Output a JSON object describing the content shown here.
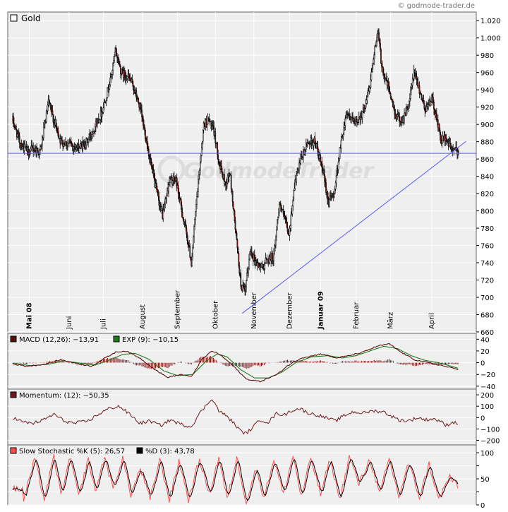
{
  "watermark_credit": "© godmode-trader.de",
  "logo_text": "GodmodeTrader",
  "colors": {
    "panel_bg": "#efefef",
    "grid": "#ffffff",
    "candle_up": "#ffffff",
    "candle_down": "#8b1a1a",
    "wick": "#000000",
    "trend_line": "#5a5aff",
    "macd": "#5c0f0f",
    "macd_signal": "#1f7a1f",
    "histogram": "#7a1010",
    "momentum": "#6e1a1a",
    "stoch_k": "#ff5050",
    "stoch_d": "#000000"
  },
  "chart_data": [
    {
      "type": "candlestick",
      "title": "Gold",
      "legend_marker_color": "#ffffff",
      "ylim": [
        660,
        1030
      ],
      "yticks": [
        660,
        680,
        700,
        720,
        740,
        760,
        780,
        800,
        820,
        840,
        860,
        880,
        900,
        920,
        940,
        960,
        980,
        1000,
        1020
      ],
      "ytick_labels": [
        "660",
        "680",
        "700",
        "720",
        "740",
        "760",
        "780",
        "800",
        "820",
        "840",
        "860",
        "880",
        "900",
        "920",
        "940",
        "960",
        "980",
        "1.000",
        "1.020"
      ],
      "months": [
        {
          "label": "Mai 08",
          "index": 24,
          "bold": true
        },
        {
          "label": "Juni",
          "index": 82,
          "bold": false
        },
        {
          "label": "Juli",
          "index": 132,
          "bold": false
        },
        {
          "label": "August",
          "index": 189,
          "bold": false
        },
        {
          "label": "September",
          "index": 240,
          "bold": false
        },
        {
          "label": "Oktober",
          "index": 295,
          "bold": false
        },
        {
          "label": "November",
          "index": 351,
          "bold": false
        },
        {
          "label": "Dezember",
          "index": 403,
          "bold": false
        },
        {
          "label": "Januar 09",
          "index": 448,
          "bold": true
        },
        {
          "label": "Februar",
          "index": 500,
          "bold": false
        },
        {
          "label": "März",
          "index": 550,
          "bold": false
        },
        {
          "label": "April",
          "index": 610,
          "bold": false
        }
      ],
      "x_count": 650,
      "price_anchors": [
        [
          0,
          905
        ],
        [
          10,
          880
        ],
        [
          22,
          868
        ],
        [
          30,
          872
        ],
        [
          40,
          868
        ],
        [
          52,
          925
        ],
        [
          60,
          905
        ],
        [
          70,
          880
        ],
        [
          82,
          878
        ],
        [
          95,
          872
        ],
        [
          108,
          880
        ],
        [
          118,
          895
        ],
        [
          130,
          915
        ],
        [
          142,
          950
        ],
        [
          150,
          985
        ],
        [
          158,
          960
        ],
        [
          168,
          955
        ],
        [
          175,
          945
        ],
        [
          185,
          920
        ],
        [
          195,
          880
        ],
        [
          202,
          850
        ],
        [
          210,
          820
        ],
        [
          218,
          795
        ],
        [
          228,
          835
        ],
        [
          238,
          835
        ],
        [
          246,
          800
        ],
        [
          255,
          765
        ],
        [
          260,
          740
        ],
        [
          268,
          815
        ],
        [
          278,
          900
        ],
        [
          286,
          905
        ],
        [
          294,
          888
        ],
        [
          302,
          850
        ],
        [
          310,
          830
        ],
        [
          316,
          845
        ],
        [
          324,
          780
        ],
        [
          332,
          715
        ],
        [
          338,
          705
        ],
        [
          346,
          755
        ],
        [
          354,
          740
        ],
        [
          362,
          735
        ],
        [
          372,
          745
        ],
        [
          380,
          748
        ],
        [
          388,
          810
        ],
        [
          396,
          790
        ],
        [
          402,
          770
        ],
        [
          410,
          830
        ],
        [
          420,
          860
        ],
        [
          430,
          880
        ],
        [
          440,
          880
        ],
        [
          450,
          850
        ],
        [
          460,
          810
        ],
        [
          468,
          822
        ],
        [
          476,
          870
        ],
        [
          486,
          915
        ],
        [
          498,
          900
        ],
        [
          510,
          915
        ],
        [
          520,
          945
        ],
        [
          526,
          985
        ],
        [
          532,
          1005
        ],
        [
          536,
          975
        ],
        [
          540,
          958
        ],
        [
          548,
          940
        ],
        [
          556,
          912
        ],
        [
          566,
          905
        ],
        [
          576,
          920
        ],
        [
          584,
          960
        ],
        [
          592,
          940
        ],
        [
          600,
          918
        ],
        [
          610,
          930
        ],
        [
          616,
          910
        ],
        [
          624,
          880
        ],
        [
          630,
          885
        ],
        [
          636,
          875
        ],
        [
          642,
          870
        ],
        [
          650,
          868
        ]
      ],
      "candles": [],
      "trend_lines": [
        {
          "kind": "horizontal",
          "y": 866.5
        },
        {
          "kind": "segment",
          "x0": 334,
          "y0": 681.5,
          "x1": 660,
          "y1": 880.5
        }
      ]
    },
    {
      "type": "line",
      "series": [
        {
          "name": "MACD (12,26)",
          "value_label": "MACD (12,26): −13,91"
        },
        {
          "name": "EXP (9)",
          "value_label": "EXP (9): −10,15"
        },
        {
          "name": "histogram"
        }
      ],
      "ylim": [
        -45,
        50
      ],
      "yticks": [
        -40,
        -20,
        0,
        20,
        40
      ],
      "ytick_labels": [
        "−40",
        "−20",
        "0",
        "20",
        "40"
      ],
      "macd_anchors": [
        [
          0,
          -2
        ],
        [
          20,
          -6
        ],
        [
          45,
          -3
        ],
        [
          70,
          5
        ],
        [
          95,
          -2
        ],
        [
          115,
          -6
        ],
        [
          130,
          5
        ],
        [
          150,
          18
        ],
        [
          165,
          20
        ],
        [
          185,
          8
        ],
        [
          205,
          -10
        ],
        [
          225,
          -25
        ],
        [
          245,
          -20
        ],
        [
          260,
          -24
        ],
        [
          275,
          5
        ],
        [
          290,
          20
        ],
        [
          300,
          15
        ],
        [
          318,
          -2
        ],
        [
          340,
          -28
        ],
        [
          360,
          -32
        ],
        [
          385,
          -20
        ],
        [
          400,
          -5
        ],
        [
          420,
          8
        ],
        [
          450,
          15
        ],
        [
          470,
          8
        ],
        [
          490,
          12
        ],
        [
          510,
          18
        ],
        [
          530,
          28
        ],
        [
          548,
          32
        ],
        [
          565,
          18
        ],
        [
          585,
          5
        ],
        [
          605,
          0
        ],
        [
          625,
          -5
        ],
        [
          650,
          -12
        ]
      ],
      "signal_anchors": [
        [
          0,
          -1
        ],
        [
          25,
          -5
        ],
        [
          50,
          -3
        ],
        [
          75,
          3
        ],
        [
          100,
          -1
        ],
        [
          120,
          -4
        ],
        [
          140,
          4
        ],
        [
          160,
          14
        ],
        [
          178,
          16
        ],
        [
          198,
          6
        ],
        [
          220,
          -14
        ],
        [
          240,
          -22
        ],
        [
          262,
          -20
        ],
        [
          282,
          3
        ],
        [
          298,
          15
        ],
        [
          312,
          10
        ],
        [
          332,
          -12
        ],
        [
          352,
          -26
        ],
        [
          372,
          -26
        ],
        [
          392,
          -16
        ],
        [
          412,
          0
        ],
        [
          435,
          10
        ],
        [
          460,
          12
        ],
        [
          480,
          8
        ],
        [
          500,
          12
        ],
        [
          520,
          20
        ],
        [
          540,
          28
        ],
        [
          560,
          24
        ],
        [
          580,
          12
        ],
        [
          600,
          4
        ],
        [
          620,
          0
        ],
        [
          650,
          -10
        ]
      ]
    },
    {
      "type": "line",
      "series": [
        {
          "name": "Momentum (12)",
          "value_label": "Momentum: (12): −50,35"
        }
      ],
      "ylim": [
        -240,
        250
      ],
      "yticks": [
        -200,
        -100,
        0,
        100,
        200
      ],
      "ytick_labels": [
        "−200",
        "−100",
        "0",
        "100",
        "200"
      ],
      "anchors": [
        [
          0,
          0
        ],
        [
          15,
          -40
        ],
        [
          30,
          -50
        ],
        [
          45,
          -20
        ],
        [
          60,
          30
        ],
        [
          75,
          -30
        ],
        [
          90,
          -50
        ],
        [
          110,
          -30
        ],
        [
          125,
          30
        ],
        [
          140,
          80
        ],
        [
          155,
          100
        ],
        [
          170,
          30
        ],
        [
          185,
          -50
        ],
        [
          200,
          -30
        ],
        [
          215,
          -70
        ],
        [
          230,
          -20
        ],
        [
          245,
          -60
        ],
        [
          260,
          -80
        ],
        [
          270,
          20
        ],
        [
          282,
          110
        ],
        [
          290,
          170
        ],
        [
          300,
          60
        ],
        [
          312,
          10
        ],
        [
          322,
          -50
        ],
        [
          332,
          -120
        ],
        [
          340,
          -140
        ],
        [
          350,
          -80
        ],
        [
          360,
          -20
        ],
        [
          372,
          -40
        ],
        [
          385,
          40
        ],
        [
          395,
          20
        ],
        [
          405,
          60
        ],
        [
          418,
          80
        ],
        [
          430,
          40
        ],
        [
          445,
          20
        ],
        [
          460,
          -10
        ],
        [
          470,
          -30
        ],
        [
          480,
          10
        ],
        [
          495,
          50
        ],
        [
          510,
          40
        ],
        [
          525,
          60
        ],
        [
          540,
          50
        ],
        [
          552,
          10
        ],
        [
          562,
          -20
        ],
        [
          575,
          -30
        ],
        [
          590,
          0
        ],
        [
          600,
          -20
        ],
        [
          612,
          -10
        ],
        [
          622,
          -30
        ],
        [
          630,
          -70
        ],
        [
          640,
          -40
        ],
        [
          650,
          -50
        ]
      ]
    },
    {
      "type": "line",
      "series": [
        {
          "name": "Slow Stochastic %K (5)",
          "value_label": "Slow Stochastic %K (5): 26,57"
        },
        {
          "name": "%D (3)",
          "value_label": "%D (3): 43,78"
        }
      ],
      "ylim": [
        0,
        115
      ],
      "yticks": [
        0,
        25,
        50,
        75,
        100
      ],
      "ytick_labels": [
        "0",
        "",
        "50",
        "",
        "100"
      ],
      "peaks": [
        [
          15,
          5
        ],
        [
          32,
          88
        ],
        [
          46,
          10
        ],
        [
          60,
          92
        ],
        [
          70,
          20
        ],
        [
          84,
          90
        ],
        [
          96,
          15
        ],
        [
          110,
          88
        ],
        [
          120,
          25
        ],
        [
          134,
          92
        ],
        [
          146,
          30
        ],
        [
          160,
          90
        ],
        [
          172,
          20
        ],
        [
          186,
          70
        ],
        [
          200,
          10
        ],
        [
          214,
          88
        ],
        [
          228,
          10
        ],
        [
          242,
          85
        ],
        [
          256,
          10
        ],
        [
          272,
          88
        ],
        [
          286,
          20
        ],
        [
          300,
          92
        ],
        [
          312,
          10
        ],
        [
          326,
          90
        ],
        [
          340,
          5
        ],
        [
          354,
          70
        ],
        [
          366,
          15
        ],
        [
          380,
          88
        ],
        [
          394,
          20
        ],
        [
          408,
          95
        ],
        [
          420,
          15
        ],
        [
          434,
          90
        ],
        [
          448,
          20
        ],
        [
          462,
          88
        ],
        [
          476,
          10
        ],
        [
          490,
          92
        ],
        [
          504,
          40
        ],
        [
          520,
          88
        ],
        [
          534,
          20
        ],
        [
          548,
          88
        ],
        [
          562,
          15
        ],
        [
          576,
          80
        ],
        [
          592,
          15
        ],
        [
          606,
          78
        ],
        [
          620,
          10
        ],
        [
          636,
          55
        ],
        [
          650,
          30
        ]
      ]
    }
  ]
}
